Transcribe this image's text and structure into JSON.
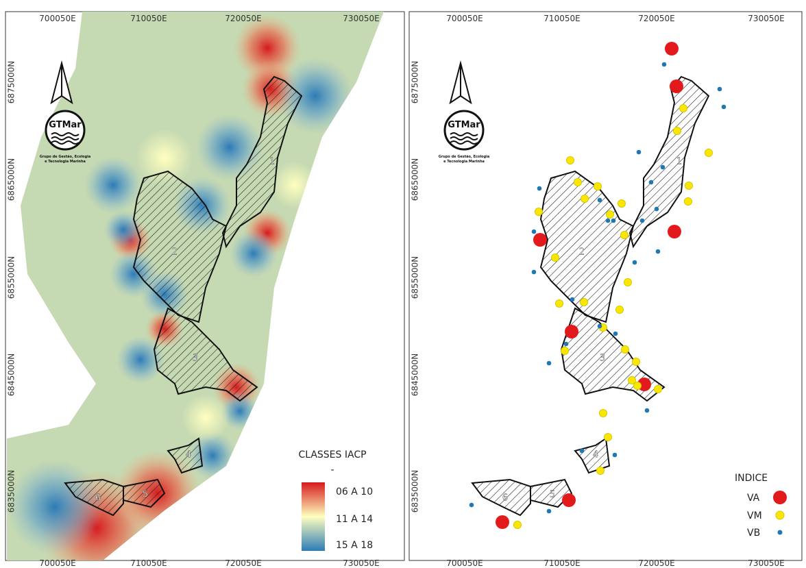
{
  "grid": {
    "x_labels": [
      "700050E",
      "710050E",
      "720050E",
      "730050E"
    ],
    "y_labels": [
      "6875000N",
      "6865000N",
      "6855000N",
      "6845000N",
      "6835000N"
    ]
  },
  "logo": {
    "name": "GTMar",
    "subtitle_1": "Grupo de Gestão, Ecologia",
    "subtitle_2": "e Tecnologia Marinha"
  },
  "left_map": {
    "areas": [
      "1",
      "2",
      "3",
      "4",
      "5",
      "6"
    ],
    "legend": {
      "title": "CLASSES IACP",
      "subtitle": "-",
      "classes": [
        "06 A 10",
        "11 A 14",
        "15 A 18"
      ]
    }
  },
  "right_map": {
    "areas": [
      "1",
      "2",
      "3",
      "4",
      "5",
      "6"
    ],
    "legend": {
      "title": "INDICE",
      "classes": [
        "VA",
        "VM",
        "VB"
      ]
    }
  }
}
